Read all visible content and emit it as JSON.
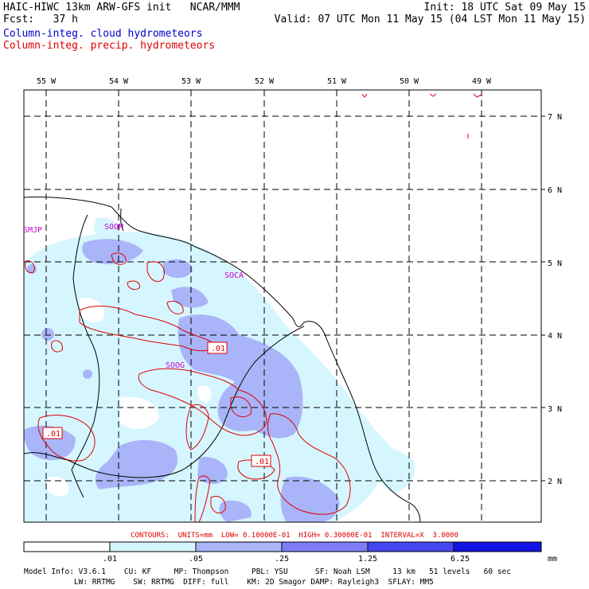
{
  "header": {
    "title": "HAIC-HIWC 13km ARW-GFS init   NCAR/MMM",
    "forecast": "Fcst:   37 h",
    "init": "Init: 18 UTC Sat 09 May 15",
    "valid": "Valid: 07 UTC Mon 11 May 15 (04 LST Mon 11 May 15)",
    "field_cloud": "Column-integ. cloud hydrometeors",
    "field_precip": "Column-integ. precip. hydrometeors"
  },
  "map": {
    "lon_labels": [
      "55 W",
      "54 W",
      "53 W",
      "52 W",
      "51 W",
      "50 W",
      "49 W"
    ],
    "lat_labels": [
      "7 N",
      "6 N",
      "5 N",
      "4 N",
      "3 N",
      "2 N"
    ],
    "station_labels": [
      "SMJP",
      "SOOM",
      "SOCA",
      "SOOG"
    ],
    "contour_labels": [
      ".01",
      ".01",
      ".01"
    ],
    "colors": {
      "cloud_light": "#d6f6ff",
      "cloud_medium": "#a9b5f8",
      "precip_contour": "#dd0000",
      "station": "#cc00cc",
      "coast": "#000000"
    }
  },
  "contour_info": "CONTOURS:  UNITS=mm  LOW= 0.10000E-01  HIGH= 0.30000E-01  INTERVAL=X  3.0000",
  "colorbar": {
    "ticks": [
      ".01",
      ".05",
      ".25",
      "1.25",
      "6.25"
    ],
    "unit": "mm",
    "colors": [
      "#ffffff",
      "#d6f6ff",
      "#a9b5f8",
      "#7d7df5",
      "#4646f0",
      "#1414e6"
    ]
  },
  "footer": {
    "line1": "Model Info: V3.6.1    CU: KF     MP: Thompson     PBL: YSU      SF: Noah LSM     13 km   51 levels   60 sec",
    "line2": "           LW: RRTMG    SW: RRTMG  DIFF: full    KM: 2D Smagor DAMP: Rayleigh3  SFLAY: MM5"
  }
}
